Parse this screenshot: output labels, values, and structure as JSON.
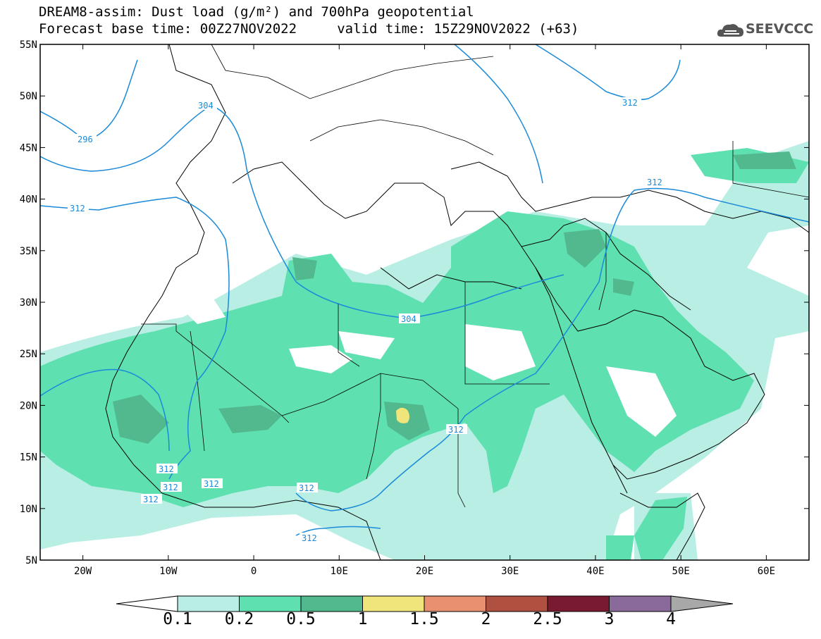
{
  "title_line1": "DREAM8-assim: Dust load (g/m²) and 700hPa geopotential",
  "title_line2": "Forecast base time: 00Z27NOV2022     valid time: 15Z29NOV2022 (+63)",
  "logo": {
    "text": "SEEVCCC",
    "icon": "cloud-logo-icon"
  },
  "map": {
    "lon_range": [
      -25,
      65
    ],
    "lat_range": [
      5,
      55
    ],
    "lat_labels": [
      "55N",
      "50N",
      "45N",
      "40N",
      "35N",
      "30N",
      "25N",
      "20N",
      "15N",
      "10N",
      "5N"
    ],
    "lon_labels": [
      "20W",
      "10W",
      "0",
      "10E",
      "20E",
      "30E",
      "40E",
      "50E",
      "60E"
    ]
  },
  "contour_labels": [
    "296",
    "304",
    "312",
    "312",
    "304",
    "312",
    "312",
    "312",
    "312",
    "312",
    "312",
    "312",
    "312"
  ],
  "colorbar": {
    "labels": [
      "0.1",
      "0.2",
      "0.5",
      "1",
      "1.5",
      "2",
      "2.5",
      "3",
      "4"
    ],
    "colors": [
      "#ffffff",
      "#b9eee4",
      "#5fe0b0",
      "#52b98e",
      "#f0e57a",
      "#e89070",
      "#b05040",
      "#7a1a30",
      "#8a6a9a",
      "#a8a8a8"
    ]
  }
}
